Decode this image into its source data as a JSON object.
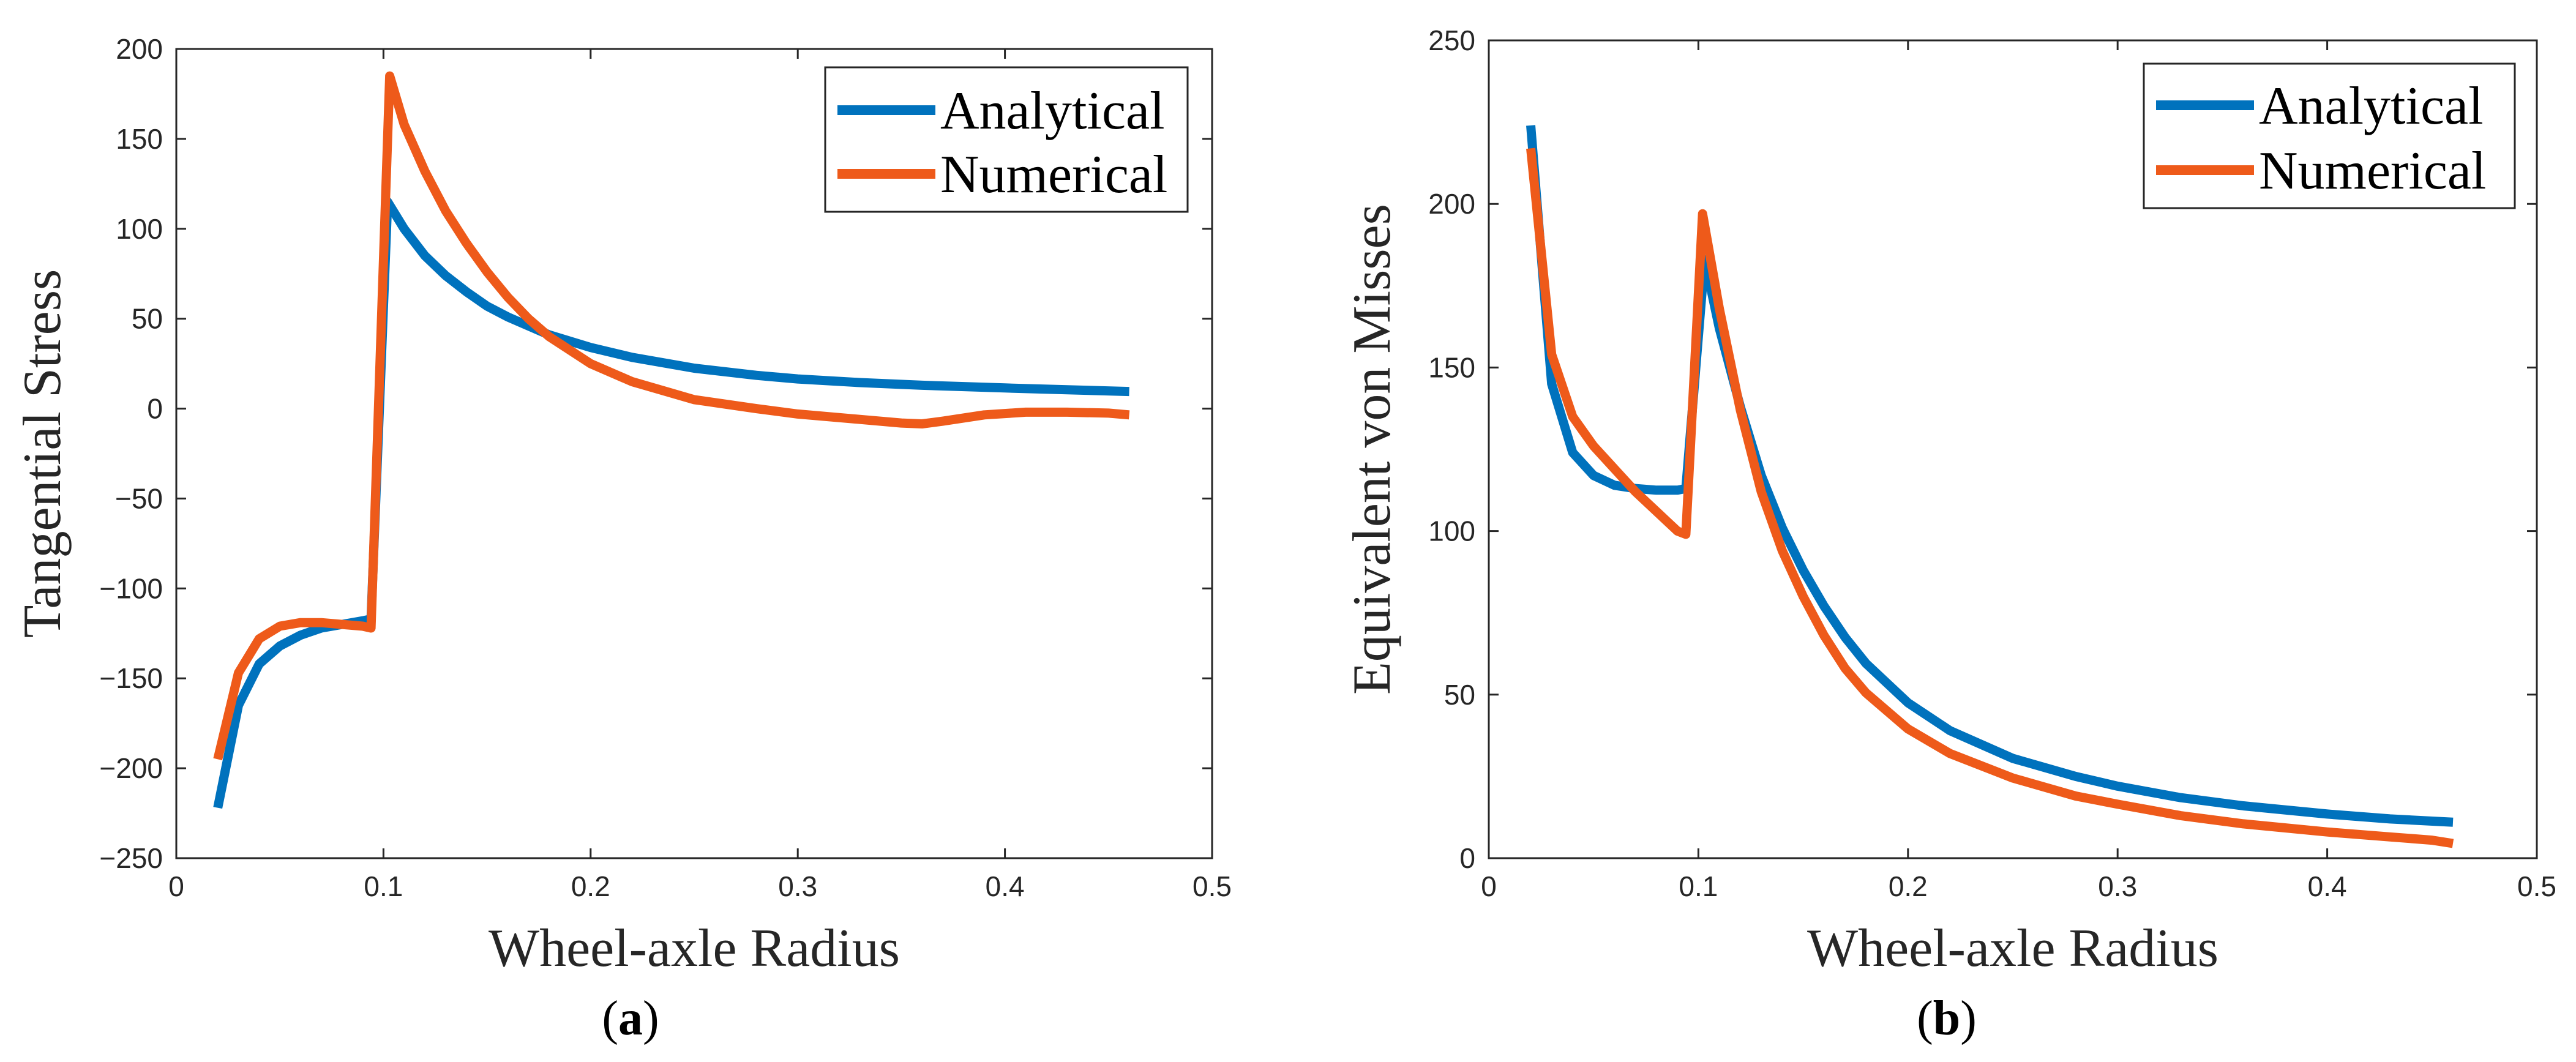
{
  "chart_data": [
    {
      "type": "line",
      "panel": "a",
      "caption_letter": "a",
      "xlabel": "Wheel-axle Radius",
      "ylabel": "Tangential Stress",
      "xlim": [
        0,
        0.5
      ],
      "ylim": [
        -250,
        200
      ],
      "xticks": [
        0,
        0.1,
        0.2,
        0.3,
        0.4,
        0.5
      ],
      "xtick_labels": [
        "0",
        "0.1",
        "0.2",
        "0.3",
        "0.4",
        "0.5"
      ],
      "yticks": [
        -250,
        -200,
        -150,
        -100,
        -50,
        0,
        50,
        100,
        150,
        200
      ],
      "ytick_labels": [
        "−250",
        "−200",
        "−150",
        "−100",
        "−50",
        "0",
        "50",
        "100",
        "150",
        "200"
      ],
      "legend_position": "top-right",
      "grid": false,
      "series": [
        {
          "name": "Analytical",
          "color": "#0072BD",
          "x": [
            0.02,
            0.03,
            0.04,
            0.05,
            0.06,
            0.07,
            0.08,
            0.09,
            0.094,
            0.102,
            0.11,
            0.12,
            0.13,
            0.14,
            0.15,
            0.16,
            0.18,
            0.2,
            0.22,
            0.25,
            0.28,
            0.3,
            0.33,
            0.36,
            0.4,
            0.43,
            0.46
          ],
          "y": [
            -222,
            -165,
            -142,
            -132,
            -126,
            -122,
            -120,
            -118,
            -117,
            115,
            100,
            85,
            74,
            65,
            57,
            51,
            41,
            34,
            28.5,
            22.5,
            18.5,
            16.5,
            14.5,
            13,
            11.5,
            10.5,
            9.5
          ]
        },
        {
          "name": "Numerical",
          "color": "#EE5A1A",
          "x": [
            0.02,
            0.03,
            0.04,
            0.05,
            0.06,
            0.07,
            0.08,
            0.09,
            0.094,
            0.103,
            0.11,
            0.12,
            0.13,
            0.14,
            0.15,
            0.16,
            0.17,
            0.18,
            0.2,
            0.22,
            0.25,
            0.28,
            0.3,
            0.33,
            0.35,
            0.36,
            0.37,
            0.39,
            0.41,
            0.43,
            0.45,
            0.46
          ],
          "y": [
            -195,
            -147,
            -128,
            -121,
            -119,
            -119,
            -120,
            -121,
            -122,
            185,
            158,
            132,
            110,
            92,
            76,
            62,
            50,
            40,
            25,
            15,
            5,
            0,
            -3,
            -6,
            -8,
            -8.5,
            -7,
            -3.5,
            -2,
            -2,
            -2.5,
            -3.5
          ]
        }
      ]
    },
    {
      "type": "line",
      "panel": "b",
      "caption_letter": "b",
      "xlabel": "Wheel-axle Radius",
      "ylabel": "Equivalent von Misses",
      "xlim": [
        0,
        0.5
      ],
      "ylim": [
        0,
        250
      ],
      "xticks": [
        0,
        0.1,
        0.2,
        0.3,
        0.4,
        0.5
      ],
      "xtick_labels": [
        "0",
        "0.1",
        "0.2",
        "0.3",
        "0.4",
        "0.5"
      ],
      "yticks": [
        0,
        50,
        100,
        150,
        200,
        250
      ],
      "ytick_labels": [
        "0",
        "50",
        "100",
        "150",
        "200",
        "250"
      ],
      "legend_position": "top-right",
      "grid": false,
      "series": [
        {
          "name": "Analytical",
          "color": "#0072BD",
          "x": [
            0.02,
            0.03,
            0.04,
            0.05,
            0.06,
            0.07,
            0.08,
            0.09,
            0.094,
            0.103,
            0.11,
            0.12,
            0.13,
            0.14,
            0.15,
            0.16,
            0.17,
            0.18,
            0.2,
            0.22,
            0.25,
            0.28,
            0.3,
            0.33,
            0.36,
            0.4,
            0.43,
            0.46
          ],
          "y": [
            224,
            145,
            124,
            117,
            114,
            113,
            112.5,
            112.5,
            113,
            183,
            162,
            138,
            117,
            101,
            88,
            77,
            67.5,
            59.5,
            47.5,
            39,
            30.5,
            25,
            22,
            18.5,
            16,
            13.5,
            12,
            11
          ]
        },
        {
          "name": "Numerical",
          "color": "#EE5A1A",
          "x": [
            0.02,
            0.03,
            0.04,
            0.05,
            0.06,
            0.07,
            0.08,
            0.085,
            0.09,
            0.094,
            0.102,
            0.11,
            0.12,
            0.13,
            0.14,
            0.15,
            0.16,
            0.17,
            0.18,
            0.2,
            0.22,
            0.25,
            0.28,
            0.3,
            0.33,
            0.36,
            0.4,
            0.43,
            0.45,
            0.46
          ],
          "y": [
            217,
            154,
            135,
            126,
            119,
            112,
            106,
            103,
            100,
            99,
            197,
            168,
            137,
            112,
            94,
            80,
            68,
            58,
            50.5,
            39.5,
            32,
            24.5,
            19,
            16.5,
            13,
            10.5,
            8,
            6.5,
            5.5,
            4.5
          ]
        }
      ]
    }
  ]
}
